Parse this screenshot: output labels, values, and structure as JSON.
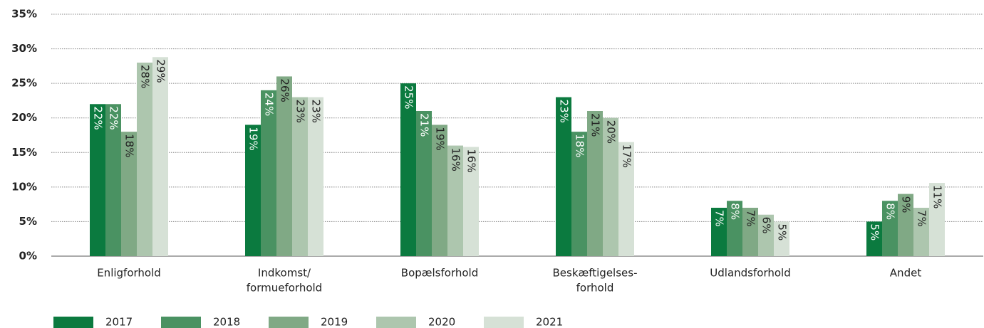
{
  "chart_data": {
    "type": "bar",
    "categories": [
      [
        "Enligforhold"
      ],
      [
        "Indkomst/",
        "formueforhold"
      ],
      [
        "Bopælsforhold"
      ],
      [
        "Beskæftigelses-",
        "forhold"
      ],
      [
        "Udlandsforhold"
      ],
      [
        "Andet"
      ]
    ],
    "series": [
      {
        "name": "2017",
        "color": "#0b7a3f",
        "values": [
          22,
          19,
          25,
          23,
          7,
          5
        ],
        "value_labels": [
          "22%",
          "19%",
          "25%",
          "23%",
          "7%",
          "5%"
        ]
      },
      {
        "name": "2018",
        "color": "#4a9262",
        "values": [
          22,
          24,
          21,
          18,
          8,
          8
        ],
        "value_labels": [
          "22%",
          "24%",
          "21%",
          "18%",
          "8%",
          "8%"
        ]
      },
      {
        "name": "2019",
        "color": "#80a985",
        "values": [
          18,
          26,
          19,
          21,
          7,
          9
        ],
        "value_labels": [
          "18%",
          "26%",
          "19%",
          "21%",
          "7%",
          "9%"
        ]
      },
      {
        "name": "2020",
        "color": "#adc6ae",
        "values": [
          28,
          23,
          16,
          20,
          6,
          7
        ],
        "value_labels": [
          "28%",
          "23%",
          "16%",
          "20%",
          "6%",
          "7%"
        ]
      },
      {
        "name": "2021",
        "color": "#d6e1d6",
        "values": [
          28.8,
          23,
          15.8,
          16.5,
          5,
          10.6
        ],
        "value_labels": [
          "29%",
          "23%",
          "16%",
          "17%",
          "5%",
          "11%"
        ]
      }
    ],
    "ylim": [
      0,
      35
    ],
    "yticks": [
      {
        "value": 0,
        "label": "0%"
      },
      {
        "value": 5,
        "label": "5%"
      },
      {
        "value": 10,
        "label": "10%"
      },
      {
        "value": 15,
        "label": "15%"
      },
      {
        "value": 20,
        "label": "20%"
      },
      {
        "value": 25,
        "label": "25%"
      },
      {
        "value": 30,
        "label": "30%"
      },
      {
        "value": 35,
        "label": "35%"
      }
    ],
    "grid": true,
    "legend": "bottom"
  }
}
